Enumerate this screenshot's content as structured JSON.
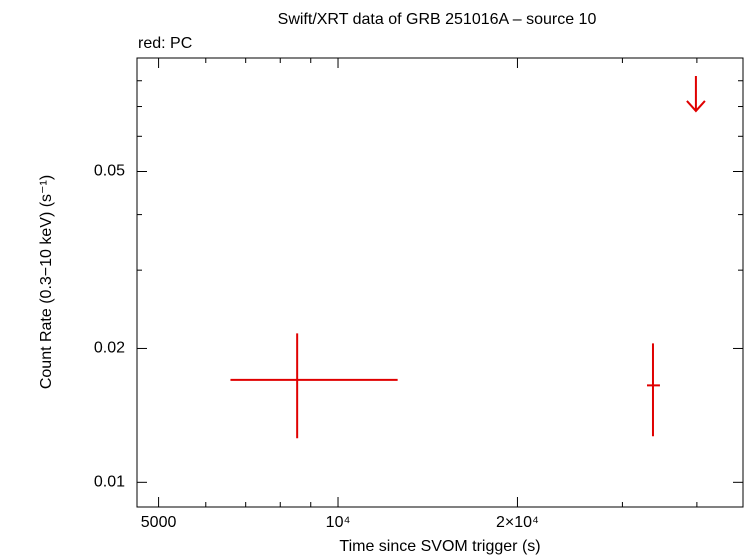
{
  "chart_data": {
    "type": "scatter",
    "title": "Swift/XRT data of GRB 251016A – source 10",
    "xlabel": "Time since SVOM trigger (s)",
    "ylabel": "Count Rate (0.3−10 keV) (s⁻¹)",
    "log_x": true,
    "log_y": true,
    "xlim": [
      4600,
      47800
    ],
    "ylim": [
      0.0088,
      0.09
    ],
    "xticks": [
      5000,
      {
        "value": 10000,
        "label": "10⁴"
      },
      {
        "value": 20000,
        "label": "2×10⁴"
      }
    ],
    "xminorticks": [
      6000,
      7000,
      8000,
      9000,
      30000,
      40000
    ],
    "yticks": [
      0.01,
      0.02,
      0.05
    ],
    "yminorticks": [
      0.03,
      0.04,
      0.06,
      0.07,
      0.08,
      0.09
    ],
    "series": [
      {
        "name": "red: PC",
        "color": "#e00000",
        "x": [
          8540,
          33760
        ],
        "xlo": [
          6600,
          32990
        ],
        "xhi": [
          12590,
          34680
        ],
        "values": [
          0.017,
          0.01652
        ],
        "ylo": [
          0.01256,
          0.01269
        ],
        "yhi": [
          0.02162,
          0.02053
        ]
      }
    ],
    "upper_limits": {
      "color": "#e00000",
      "x": [
        39850
      ],
      "values": [
        0.082
      ]
    }
  }
}
